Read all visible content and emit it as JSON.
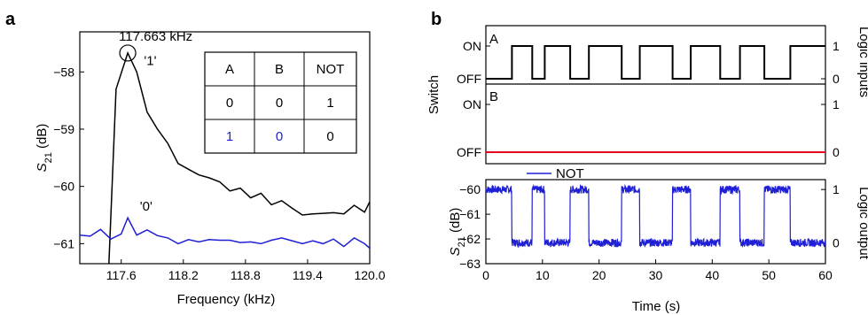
{
  "chart_data": [
    {
      "panel": "a",
      "type": "line",
      "xlabel": "Frequency (kHz)",
      "ylabel_main": "S",
      "ylabel_sub": "21",
      "ylabel_unit": " (dB)",
      "xlim": [
        117.2,
        120.0
      ],
      "ylim": [
        -61.35,
        -57.3
      ],
      "xticks": [
        117.6,
        118.2,
        118.8,
        119.4,
        120.0
      ],
      "xtick_labels": [
        "117.6",
        "118.2",
        "118.8",
        "119.4",
        "120.0"
      ],
      "yticks": [
        -58,
        -59,
        -60,
        -61
      ],
      "ytick_labels": [
        "−58",
        "−59",
        "−60",
        "−61"
      ],
      "peak_label": "117.663 kHz",
      "peak": [
        117.663,
        -57.67
      ],
      "series": [
        {
          "name": "'1'",
          "color": "#000000",
          "x": [
            117.48,
            117.55,
            117.663,
            117.75,
            117.85,
            117.95,
            118.05,
            118.15,
            118.25,
            118.35,
            118.45,
            118.55,
            118.65,
            118.75,
            118.85,
            118.95,
            119.05,
            119.15,
            119.25,
            119.35,
            119.45,
            119.55,
            119.65,
            119.75,
            119.85,
            119.95,
            120.0
          ],
          "y": [
            -61.4,
            -58.3,
            -57.67,
            -58.0,
            -58.7,
            -59.0,
            -59.25,
            -59.6,
            -59.7,
            -59.8,
            -59.85,
            -59.92,
            -60.08,
            -60.03,
            -60.2,
            -60.12,
            -60.32,
            -60.25,
            -60.38,
            -60.5,
            -60.48,
            -60.47,
            -60.46,
            -60.48,
            -60.33,
            -60.45,
            -60.27
          ]
        },
        {
          "name": "'0'",
          "color": "#1f1fd6",
          "x": [
            117.2,
            117.3,
            117.4,
            117.5,
            117.6,
            117.663,
            117.75,
            117.85,
            117.95,
            118.05,
            118.15,
            118.25,
            118.35,
            118.45,
            118.55,
            118.65,
            118.75,
            118.85,
            118.95,
            119.05,
            119.15,
            119.25,
            119.35,
            119.45,
            119.55,
            119.65,
            119.75,
            119.85,
            119.95,
            120.0
          ],
          "y": [
            -60.85,
            -60.87,
            -60.75,
            -60.92,
            -60.83,
            -60.55,
            -60.85,
            -60.76,
            -60.86,
            -60.9,
            -61.0,
            -60.93,
            -60.97,
            -60.93,
            -60.94,
            -60.94,
            -60.98,
            -60.97,
            -61.0,
            -60.94,
            -60.9,
            -60.95,
            -61.0,
            -60.95,
            -61.0,
            -60.92,
            -61.05,
            -60.9,
            -61.0,
            -61.08
          ]
        }
      ],
      "table": {
        "headers": [
          "A",
          "B",
          "NOT"
        ],
        "rows": [
          {
            "cells": [
              "0",
              "0",
              "1"
            ],
            "colors": [
              "#000000",
              "#000000",
              "#000000"
            ]
          },
          {
            "cells": [
              "1",
              "0",
              "0"
            ],
            "colors": [
              "#1f1fd6",
              "#1f1fd6",
              "#000000"
            ]
          }
        ]
      }
    },
    {
      "panel": "b",
      "type": "line",
      "xlabel": "Time (s)",
      "xlim": [
        0,
        60
      ],
      "xticks": [
        0,
        10,
        20,
        30,
        40,
        50,
        60
      ],
      "xtick_labels": [
        "0",
        "10",
        "20",
        "30",
        "40",
        "50",
        "60"
      ],
      "left_ylabel_top": "Switch",
      "right_ylabel_top": "Logic inputs",
      "right_ylabel_bottom": "Logic output",
      "ylabel_bottom_main": "S",
      "ylabel_bottom_sub": "21",
      "ylabel_bottom_unit": " (dB)",
      "switch_ticks": [
        "ON",
        "OFF"
      ],
      "logic_ticks": [
        "1",
        "0"
      ],
      "subplots": [
        {
          "label": "A",
          "color": "#000000",
          "t": [
            0,
            4.6,
            4.6,
            8.2,
            8.2,
            10.4,
            10.4,
            14.9,
            14.9,
            18.2,
            18.2,
            24.0,
            24.0,
            27.2,
            27.2,
            33.0,
            33.0,
            36.2,
            36.2,
            41.4,
            41.4,
            44.9,
            44.9,
            49.2,
            49.2,
            53.8,
            53.8,
            60
          ],
          "state": [
            0,
            0,
            1,
            1,
            0,
            0,
            1,
            1,
            0,
            0,
            1,
            1,
            0,
            0,
            1,
            1,
            0,
            0,
            1,
            1,
            0,
            0,
            1,
            1,
            0,
            0,
            1,
            1
          ]
        },
        {
          "label": "B",
          "color": "#e3001b",
          "t": [
            0,
            60
          ],
          "state": [
            0,
            0
          ]
        }
      ],
      "output": {
        "name": "NOT",
        "color": "#1f1fd6",
        "ylim": [
          -63,
          -59.6
        ],
        "yticks": [
          -60,
          -61,
          -62,
          -63
        ],
        "ytick_labels": [
          "−60",
          "−61",
          "−62",
          "−63"
        ],
        "high_db": -60.0,
        "low_db": -62.15,
        "high_intervals": [
          [
            0,
            4.6
          ],
          [
            8.2,
            10.4
          ],
          [
            14.9,
            18.2
          ],
          [
            24.0,
            27.2
          ],
          [
            33.0,
            36.2
          ],
          [
            41.4,
            44.9
          ],
          [
            49.2,
            53.8
          ]
        ],
        "noise_db": 0.2
      }
    }
  ]
}
